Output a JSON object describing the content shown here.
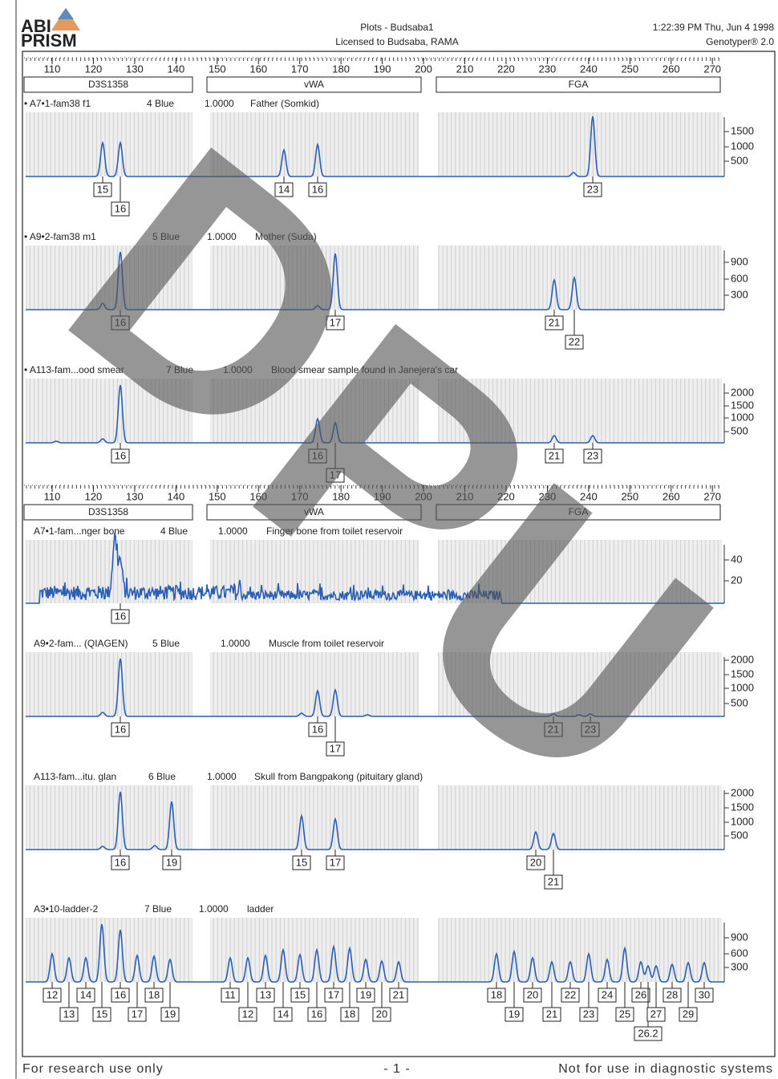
{
  "header": {
    "logo_line1": "ABI",
    "logo_line2": "PRISM",
    "title": "Plots - Budsaba1",
    "license": "Licensed to Budsaba, RAMA",
    "timestamp": "1:22:39 PM Thu, Jun 4 1998",
    "software": "Genotyper® 2.0"
  },
  "scales": [
    {
      "ticks": [
        110,
        120,
        130,
        140,
        150,
        160,
        170,
        180,
        190,
        200,
        210,
        220,
        230,
        240,
        250,
        260,
        270
      ],
      "loci": [
        "D3S1358",
        "vWA",
        "FGA"
      ]
    },
    {
      "ticks": [
        110,
        120,
        130,
        140,
        150,
        160,
        170,
        180,
        190,
        200,
        210,
        220,
        230,
        240,
        250,
        260,
        270
      ],
      "loci": [
        "D3S1358",
        "vWA",
        "FGA"
      ]
    }
  ],
  "panels": [
    {
      "sample": "• A7•1-fam38 f1",
      "dye": "4 Blue",
      "score": "1.0000",
      "description": "Father (Somkid)",
      "yticks": [
        1500,
        1000,
        500
      ],
      "alleles": [
        "15",
        "16",
        "14",
        "16",
        "23"
      ]
    },
    {
      "sample": "• A9•2-fam38 m1",
      "dye": "5 Blue",
      "score": "1.0000",
      "description": "Mother (Suda)",
      "yticks": [
        900,
        600,
        300
      ],
      "alleles": [
        "16",
        "17",
        "21",
        "22"
      ]
    },
    {
      "sample": "• A113-fam...ood smear",
      "dye": "7 Blue",
      "score": "1.0000",
      "description": "Blood smear sample found in Janejera's car",
      "yticks": [
        2000,
        1500,
        1000,
        500
      ],
      "alleles": [
        "16",
        "16",
        "17",
        "21",
        "23"
      ]
    },
    {
      "sample": "A7•1-fam...nger bone",
      "dye": "4 Blue",
      "score": "1.0000",
      "description": "Finger bone from toilet reservoir",
      "yticks": [
        40,
        20
      ],
      "alleles": [
        "16"
      ]
    },
    {
      "sample": "A9•2-fam... (QIAGEN)",
      "dye": "5 Blue",
      "score": "1.0000",
      "description": "Muscle from toilet reservoir",
      "yticks": [
        2000,
        1500,
        1000,
        500
      ],
      "alleles": [
        "16",
        "16",
        "17",
        "21",
        "23"
      ]
    },
    {
      "sample": "A113-fam...itu. glan",
      "dye": "6 Blue",
      "score": "1.0000",
      "description": "Skull from Bangpakong (pituitary gland)",
      "yticks": [
        2000,
        1500,
        1000,
        500
      ],
      "alleles": [
        "16",
        "19",
        "15",
        "17",
        "20",
        "21"
      ]
    },
    {
      "sample": "A3•10-ladder-2",
      "dye": "7 Blue",
      "score": "1.0000",
      "description": "ladder",
      "yticks": [
        900,
        600,
        300
      ],
      "alleles": [
        "12",
        "13",
        "14",
        "15",
        "16",
        "17",
        "18",
        "19",
        "11",
        "12",
        "13",
        "14",
        "15",
        "16",
        "17",
        "18",
        "19",
        "20",
        "21",
        "18",
        "19",
        "20",
        "21",
        "22",
        "23",
        "24",
        "25",
        "26",
        "26.2",
        "27",
        "28",
        "29",
        "30"
      ]
    }
  ],
  "watermark": [
    "D",
    "P",
    "U"
  ],
  "footer": {
    "left": "For research use only",
    "center": "- 1 -",
    "right": "Not for use in diagnostic systems"
  }
}
